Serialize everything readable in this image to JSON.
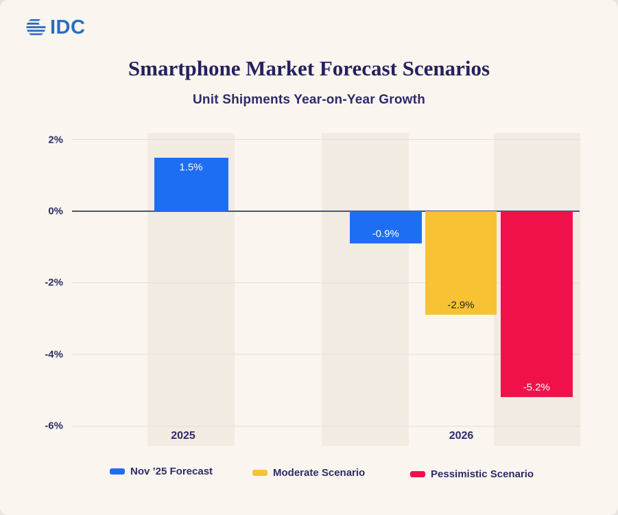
{
  "brand": {
    "name": "IDC"
  },
  "colors": {
    "background": "#faf5ee",
    "band": "#f1ebe2",
    "gridline": "#e2dedb",
    "zero_line": "#47518d",
    "text_navy": "#2d2a6a",
    "title_navy": "#262260",
    "logo_blue": "#2b6cc4"
  },
  "chart_data": {
    "type": "bar",
    "title": "Smartphone Market Forecast Scenarios",
    "subtitle": "Unit Shipments Year-on-Year Growth",
    "unit": "%",
    "ylim": [
      -6,
      2
    ],
    "yticks": [
      2,
      0,
      -2,
      -4,
      -6
    ],
    "ytick_labels": [
      "2%",
      "0%",
      "-2%",
      "-4%",
      "-6%"
    ],
    "grid": true,
    "legend_position": "bottom",
    "categories": [
      "2025",
      "2026"
    ],
    "series": [
      {
        "name": "Nov ’25 Forecast",
        "color": "#1e6ef3",
        "label_text_color": "#ffffff",
        "values": [
          1.5,
          -0.9
        ]
      },
      {
        "name": "Moderate Scenario",
        "color": "#f7c335",
        "label_text_color": "#1f1e38",
        "values": [
          null,
          -2.9
        ]
      },
      {
        "name": "Pessimistic Scenario",
        "color": "#f0114a",
        "label_text_color": "#ffffff",
        "values": [
          null,
          -5.2
        ]
      }
    ],
    "bar_labels": [
      "1.5%",
      "-0.9%",
      "-2.9%",
      "-5.2%"
    ]
  }
}
